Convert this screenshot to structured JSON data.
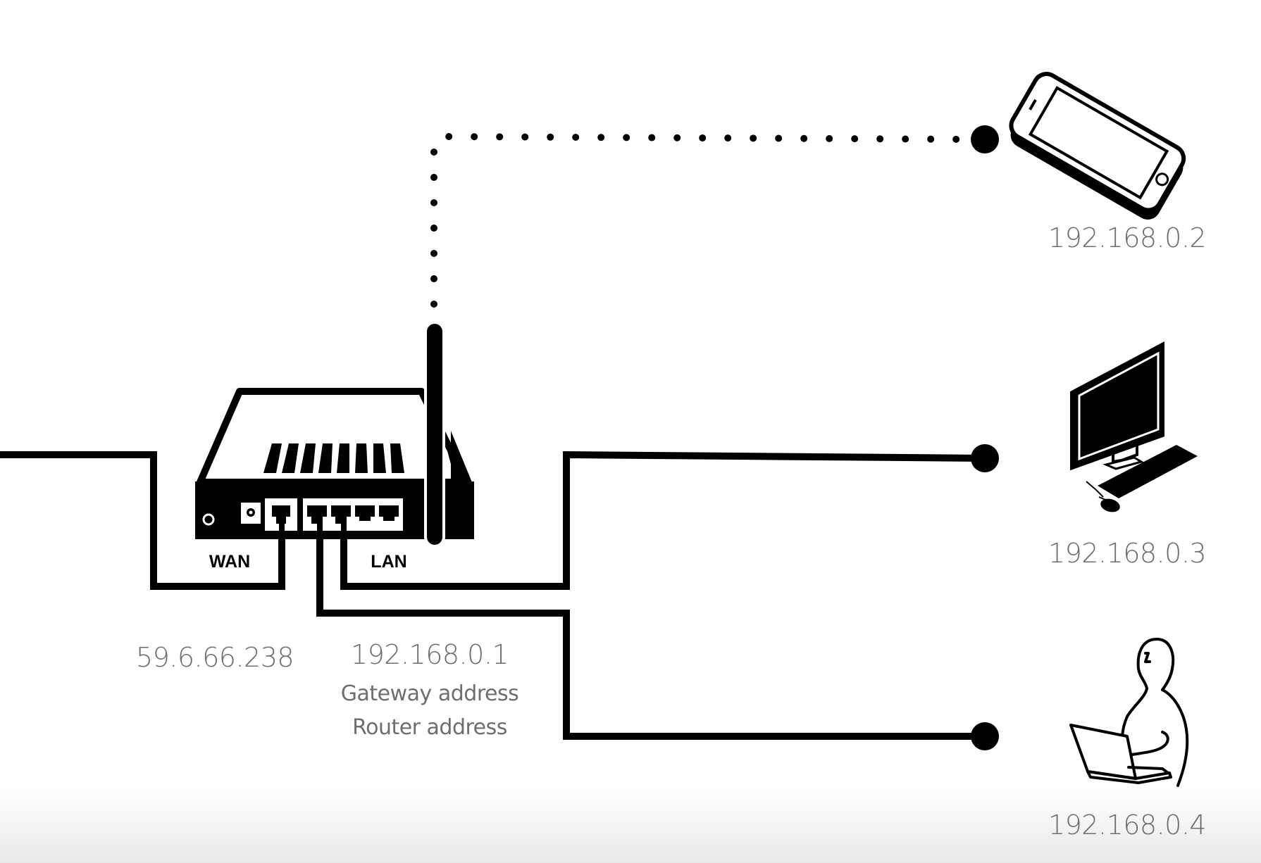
{
  "router": {
    "wan_port_label": "WAN",
    "lan_port_label": "LAN",
    "wan_ip": "59.6.66.238",
    "lan_ip": "192.168.0.1",
    "lan_ip_roles": [
      "Gateway address",
      "Router address"
    ]
  },
  "devices": [
    {
      "type": "phone-icon",
      "connection": "wireless",
      "ip": "192.168.0.2"
    },
    {
      "type": "desktop-computer-icon",
      "connection": "wired",
      "ip": "192.168.0.3"
    },
    {
      "type": "person-with-laptop-icon",
      "connection": "wired",
      "ip": "192.168.0.4"
    }
  ],
  "colors": {
    "line": "#000000",
    "text": "#6e6e6e",
    "background": "#ffffff"
  }
}
